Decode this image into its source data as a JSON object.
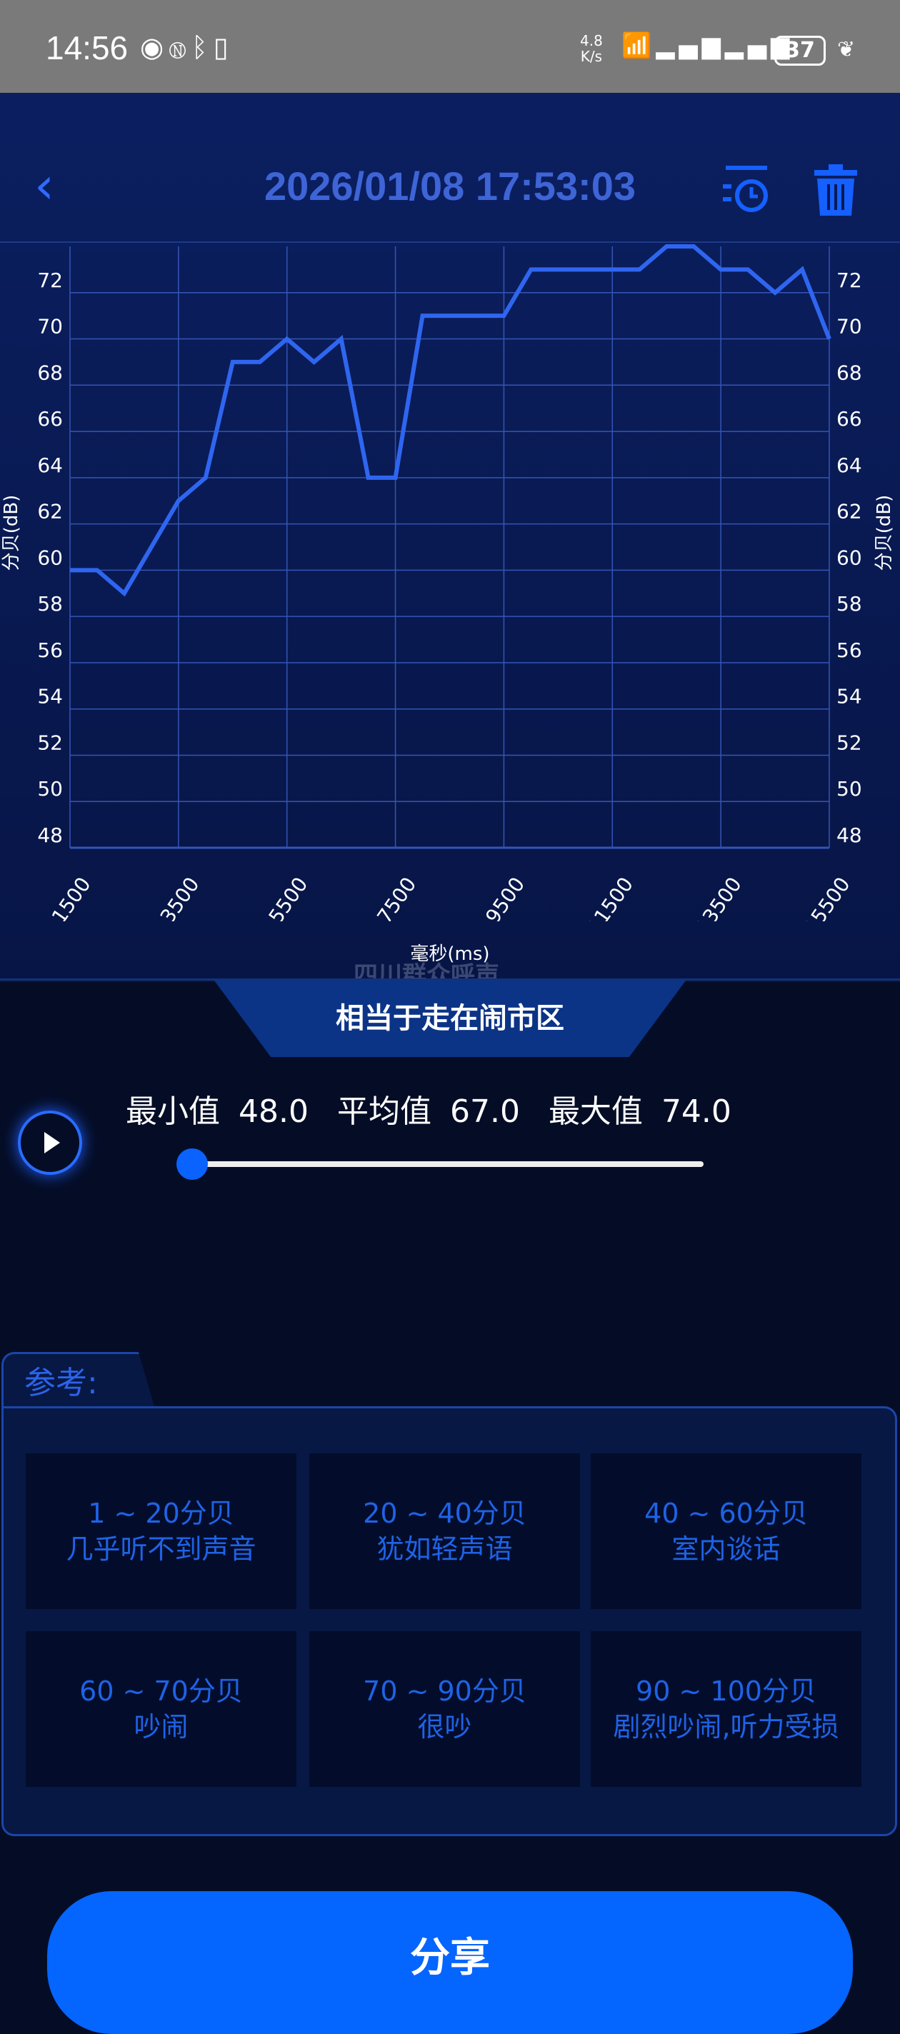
{
  "status_bar": {
    "time": "14:56",
    "net_speed": "4.8",
    "net_unit": "K/s",
    "battery": "37",
    "icons": [
      "eye-icon",
      "nfc-icon",
      "bluetooth-icon",
      "vibrate-icon",
      "wifi-icon",
      "signal-4g-icon",
      "signal-4g-icon",
      "battery-icon",
      "leaf-icon"
    ]
  },
  "header": {
    "title": "2026/01/08 17:53:03",
    "back_icon": "chevron-left-icon",
    "history_icon": "history-clock-icon",
    "delete_icon": "trash-icon"
  },
  "chart_data": {
    "type": "line",
    "x": [
      1500,
      2000,
      2500,
      3000,
      3500,
      4000,
      4500,
      5000,
      5500,
      6000,
      6500,
      7000,
      7500,
      8000,
      8500,
      9000,
      9500,
      10000,
      10500,
      11000,
      11500,
      12000,
      12500,
      13000,
      13500,
      14000,
      14500,
      15000,
      15500
    ],
    "series": [
      {
        "values": [
          60,
          60,
          59,
          61,
          63,
          64,
          69,
          69,
          70,
          69,
          70,
          64,
          64,
          71,
          71,
          71,
          71,
          73,
          73,
          73,
          73,
          73,
          74,
          74,
          73,
          73,
          72,
          73,
          70
        ]
      }
    ],
    "xlabel": "毫秒(ms)",
    "ylabel": "分贝(dB)",
    "ylabel_right": "分贝(dB)",
    "xlim": [
      1500,
      15500
    ],
    "ylim": [
      48,
      74
    ],
    "xticks": [
      "1500",
      "3500",
      "5500",
      "7500",
      "9500",
      "11500",
      "13500",
      "15500"
    ],
    "yticks": [
      "48",
      "50",
      "52",
      "54",
      "56",
      "58",
      "60",
      "62",
      "64",
      "66",
      "68",
      "70",
      "72"
    ],
    "grid": true,
    "line_color": "#2f66f0"
  },
  "watermark": "四川群众呼声",
  "banner": "相当于走在闹市区",
  "stats": {
    "min_label": "最小值",
    "min": "48.0",
    "avg_label": "平均值",
    "avg": "67.0",
    "max_label": "最大值",
    "max": "74.0"
  },
  "playback": {
    "progress": 0
  },
  "reference": {
    "title": "参考:",
    "items": [
      {
        "range": "1 ~ 20分贝",
        "desc": "几乎听不到声音"
      },
      {
        "range": "20 ~ 40分贝",
        "desc": "犹如轻声语"
      },
      {
        "range": "40 ~ 60分贝",
        "desc": "室内谈话"
      },
      {
        "range": "60 ~ 70分贝",
        "desc": "吵闹"
      },
      {
        "range": "70 ~ 90分贝",
        "desc": "很吵"
      },
      {
        "range": "90 ~ 100分贝",
        "desc": "剧烈吵闹,听力受损"
      }
    ]
  },
  "share_label": "分享"
}
